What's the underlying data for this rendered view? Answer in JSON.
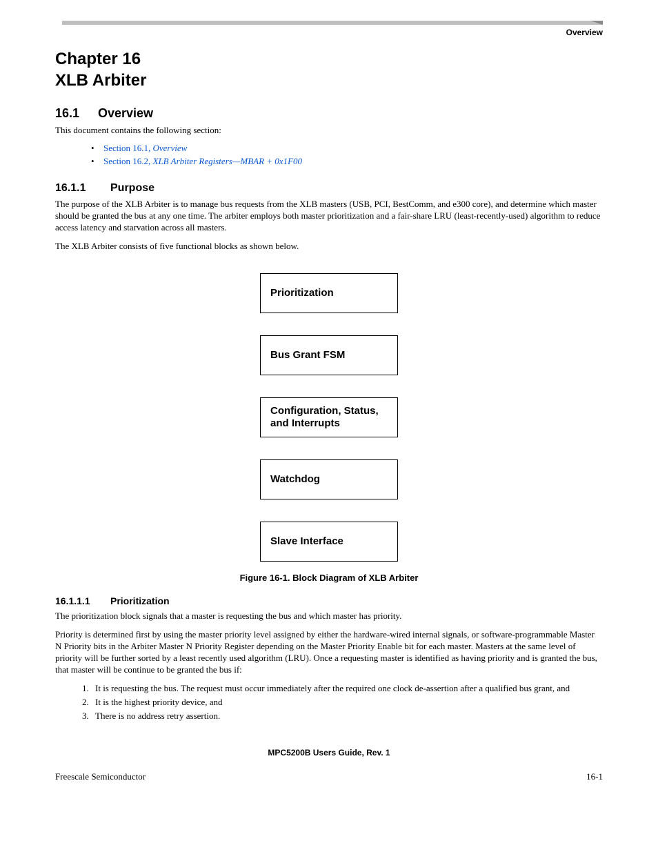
{
  "header": {
    "section_label": "Overview"
  },
  "chapter": {
    "number": "Chapter 16",
    "title": "XLB Arbiter"
  },
  "sec_overview": {
    "num": "16.1",
    "title": "Overview",
    "intro": "This document contains the following section:",
    "links": [
      {
        "prefix": "Section 16.1, ",
        "italic": "Overview"
      },
      {
        "prefix": "Section 16.2, ",
        "italic": "XLB Arbiter Registers—MBAR + 0x1F00"
      }
    ]
  },
  "sec_purpose": {
    "num": "16.1.1",
    "title": "Purpose",
    "p1": "The purpose of the XLB Arbiter is to manage bus requests from the XLB masters (USB, PCI, BestComm, and e300 core), and determine which master should be granted the bus at any one time. The arbiter employs both master prioritization and a fair-share LRU (least-recently-used) algorithm to reduce access latency and starvation across all masters.",
    "p2": "The XLB Arbiter consists of five functional blocks as shown below."
  },
  "diagram": {
    "blocks": [
      "Prioritization",
      "Bus Grant FSM",
      "Configuration, Status, and Interrupts",
      "Watchdog",
      "Slave Interface"
    ],
    "caption": "Figure 16-1. Block Diagram of XLB Arbiter"
  },
  "sec_prioritization": {
    "num": "16.1.1.1",
    "title": "Prioritization",
    "p1": "The prioritization block signals that a master is requesting the bus and which master has priority.",
    "p2": "Priority is determined first by using the master priority level assigned by either the hardware-wired internal signals, or software-programmable Master N Priority bits in the Arbiter Master N Priority Register depending on the Master Priority Enable bit for each master. Masters at the same level of priority will be further sorted by a least recently used algorithm (LRU). Once a requesting master is identified as having priority and is granted the bus, that master will be continue to be granted the bus if:",
    "list": [
      "It is requesting the bus. The request must occur immediately after the required one clock de-assertion after a qualified bus grant, and",
      "It is the highest priority device, and",
      "There is no address retry assertion."
    ]
  },
  "footer": {
    "doc": "MPC5200B Users Guide, Rev. 1",
    "left": "Freescale Semiconductor",
    "right": "16-1"
  }
}
